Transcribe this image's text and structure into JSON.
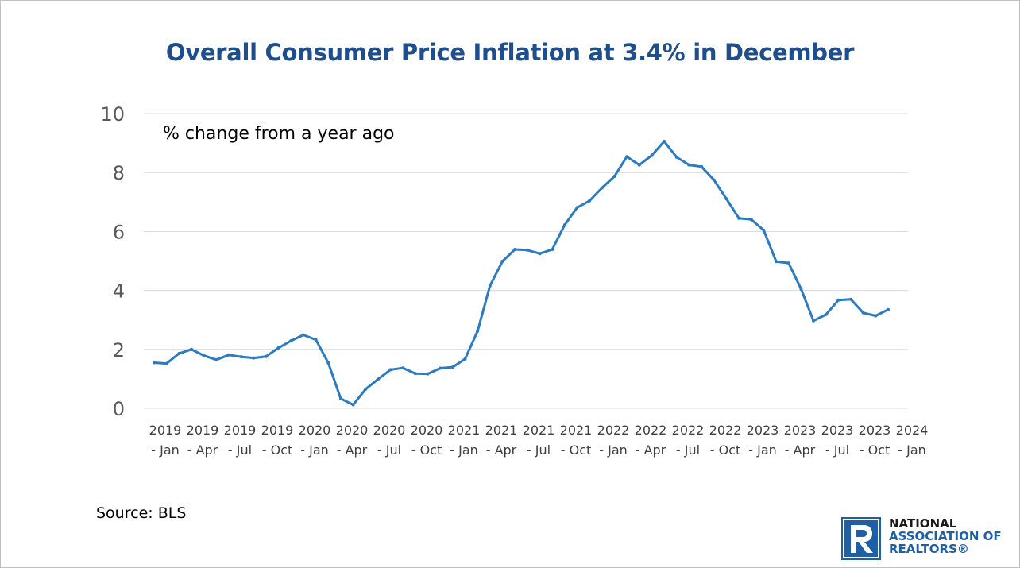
{
  "chart_data": {
    "type": "line",
    "title": "Overall Consumer Price Inflation at 3.4% in December",
    "annotation": "% change from a year ago",
    "source": "Source: BLS",
    "ylim": [
      0,
      10
    ],
    "yticks": [
      0,
      2,
      4,
      6,
      8,
      10
    ],
    "grid": true,
    "legend": "none",
    "line_color": "#2a7bc1",
    "xtick_labels": [
      [
        "2019",
        "- Jan"
      ],
      [
        "2019",
        "- Apr"
      ],
      [
        "2019",
        "- Jul"
      ],
      [
        "2019",
        "- Oct"
      ],
      [
        "2020",
        "- Jan"
      ],
      [
        "2020",
        "- Apr"
      ],
      [
        "2020",
        "- Jul"
      ],
      [
        "2020",
        "- Oct"
      ],
      [
        "2021",
        "- Jan"
      ],
      [
        "2021",
        "- Apr"
      ],
      [
        "2021",
        "- Jul"
      ],
      [
        "2021",
        "- Oct"
      ],
      [
        "2022",
        "- Jan"
      ],
      [
        "2022",
        "- Apr"
      ],
      [
        "2022",
        "- Jul"
      ],
      [
        "2022",
        "- Oct"
      ],
      [
        "2023",
        "- Jan"
      ],
      [
        "2023",
        "- Apr"
      ],
      [
        "2023",
        "- Jul"
      ],
      [
        "2023",
        "- Oct"
      ],
      [
        "2024",
        "- Jan"
      ]
    ],
    "x": [
      "2019-01",
      "2019-02",
      "2019-03",
      "2019-04",
      "2019-05",
      "2019-06",
      "2019-07",
      "2019-08",
      "2019-09",
      "2019-10",
      "2019-11",
      "2019-12",
      "2020-01",
      "2020-02",
      "2020-03",
      "2020-04",
      "2020-05",
      "2020-06",
      "2020-07",
      "2020-08",
      "2020-09",
      "2020-10",
      "2020-11",
      "2020-12",
      "2021-01",
      "2021-02",
      "2021-03",
      "2021-04",
      "2021-05",
      "2021-06",
      "2021-07",
      "2021-08",
      "2021-09",
      "2021-10",
      "2021-11",
      "2021-12",
      "2022-01",
      "2022-02",
      "2022-03",
      "2022-04",
      "2022-05",
      "2022-06",
      "2022-07",
      "2022-08",
      "2022-09",
      "2022-10",
      "2022-11",
      "2022-12",
      "2023-01",
      "2023-02",
      "2023-03",
      "2023-04",
      "2023-05",
      "2023-06",
      "2023-07",
      "2023-08",
      "2023-09",
      "2023-10",
      "2023-11",
      "2023-12"
    ],
    "values": [
      1.55,
      1.52,
      1.86,
      2.0,
      1.79,
      1.65,
      1.81,
      1.75,
      1.71,
      1.76,
      2.05,
      2.29,
      2.49,
      2.33,
      1.54,
      0.33,
      0.12,
      0.65,
      0.99,
      1.31,
      1.37,
      1.18,
      1.17,
      1.36,
      1.4,
      1.68,
      2.62,
      4.16,
      4.99,
      5.39,
      5.37,
      5.25,
      5.39,
      6.22,
      6.81,
      7.04,
      7.48,
      7.87,
      8.54,
      8.26,
      8.58,
      9.06,
      8.52,
      8.26,
      8.2,
      7.75,
      7.11,
      6.45,
      6.41,
      6.04,
      4.98,
      4.93,
      4.05,
      2.97,
      3.18,
      3.67,
      3.7,
      3.24,
      3.14,
      3.35
    ]
  },
  "logo": {
    "lines": [
      "NATIONAL",
      "ASSOCIATION OF",
      "REALTORS®"
    ]
  }
}
